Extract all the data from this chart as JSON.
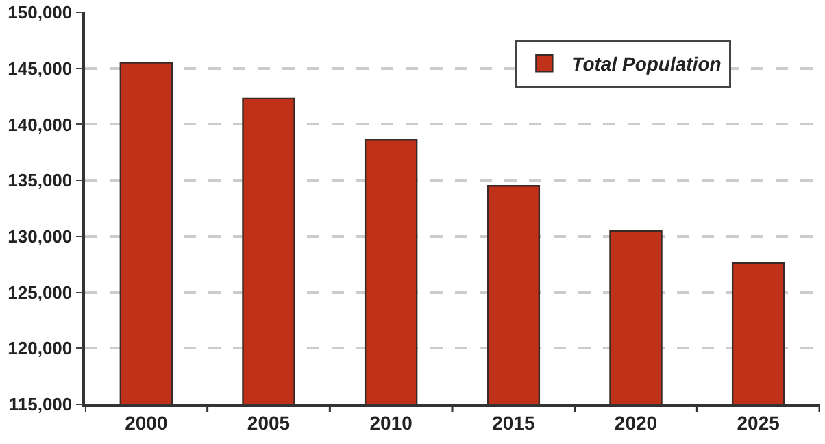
{
  "chart_data": {
    "type": "bar",
    "categories": [
      "2000",
      "2005",
      "2010",
      "2015",
      "2020",
      "2025"
    ],
    "series": [
      {
        "name": "Total Population",
        "color": "#c0311a",
        "values": [
          145500,
          142300,
          138600,
          134500,
          130500,
          127600
        ]
      }
    ],
    "ylim": [
      115000,
      150000
    ],
    "yticks": [
      {
        "value": 115000,
        "label": "115,000"
      },
      {
        "value": 120000,
        "label": "120,000"
      },
      {
        "value": 125000,
        "label": "125,000"
      },
      {
        "value": 130000,
        "label": "130,000"
      },
      {
        "value": 135000,
        "label": "135,000"
      },
      {
        "value": 140000,
        "label": "140,000"
      },
      {
        "value": 145000,
        "label": "145,000"
      },
      {
        "value": 150000,
        "label": "150,000"
      }
    ],
    "grid": "y",
    "legend": "top right"
  }
}
